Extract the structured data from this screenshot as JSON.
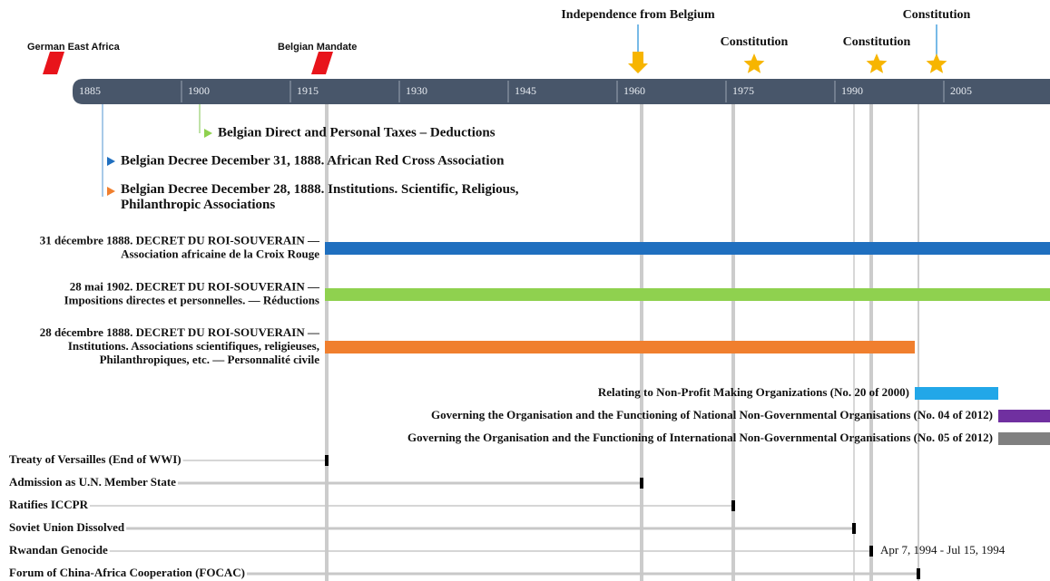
{
  "axis_labels": [
    "1885",
    "1900",
    "1915",
    "1930",
    "1945",
    "1960",
    "1975",
    "1990",
    "2005"
  ],
  "markers": [
    {
      "label": "German East Africa",
      "kind": "flag"
    },
    {
      "label": "Belgian Mandate",
      "kind": "flag"
    },
    {
      "label": "Independence from Belgium",
      "kind": "arrow"
    },
    {
      "label": "Constitution",
      "kind": "star"
    },
    {
      "label": "Constitution",
      "kind": "star"
    },
    {
      "label": "Constitution",
      "kind": "star"
    }
  ],
  "legend": [
    {
      "label": "Belgian Direct and Personal Taxes – Deductions",
      "color": "#8fd14f"
    },
    {
      "label": "Belgian Decree December 31, 1888. African Red Cross Association",
      "color": "#1f6fbf"
    },
    {
      "label": "Belgian Decree December 28, 1888. Institutions. Scientific, Religious, Philanthropic Associations",
      "color": "#f07f2e"
    }
  ],
  "laws": [
    {
      "label": "31 décembre 1888. DECRET DU ROI-SOUVERAIN — Association africaine de la Croix Rouge",
      "color": "#1f6fbf"
    },
    {
      "label": "28 mai 1902. DECRET DU ROI-SOUVERAIN — Impositions directes et personnelles. — Réductions",
      "color": "#8fd14f"
    },
    {
      "label": "28 décembre 1888. DECRET DU ROI-SOUVERAIN — Institutions. Associations scientifiques, religieuses, Philanthropiques, etc. — Personnalité civile",
      "color": "#f07f2e"
    },
    {
      "label": "Relating to Non-Profit Making Organizations (No. 20 of 2000)",
      "color": "#22a7e8"
    },
    {
      "label": "Governing the Organisation and the Functioning of National Non-Governmental Organisations (No. 04 of 2012)",
      "color": "#7030a0"
    },
    {
      "label": "Governing the Organisation and the Functioning of International Non-Governmental Organisations (No. 05 of 2012)",
      "color": "#808080"
    }
  ],
  "events": [
    {
      "label": "Treaty of Versailles (End of WWI)"
    },
    {
      "label": "Admission as U.N. Member State"
    },
    {
      "label": "Ratifies ICCPR"
    },
    {
      "label": "Soviet Union Dissolved"
    },
    {
      "label": "Rwandan Genocide",
      "note": "Apr 7, 1994 - Jul 15, 1994"
    },
    {
      "label": "Forum of China-Africa Cooperation (FOCAC)"
    }
  ]
}
